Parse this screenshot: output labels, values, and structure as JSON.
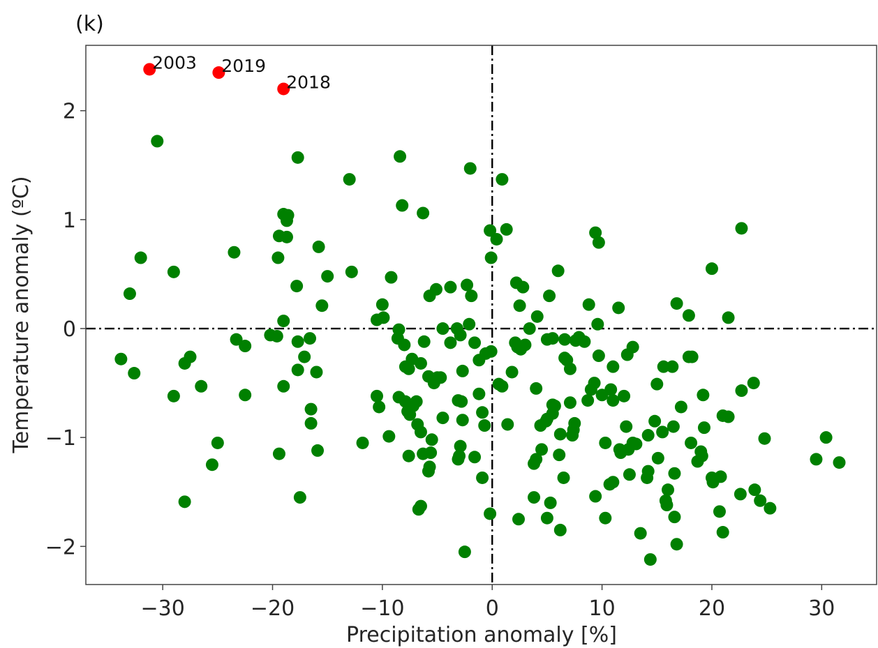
{
  "chart_data": {
    "type": "scatter",
    "panel_label": "(k)",
    "xlabel": "Precipitation anomaly [%]",
    "ylabel": "Temperature anomaly (ºC)",
    "xlim": [
      -37,
      35
    ],
    "ylim": [
      -2.35,
      2.6
    ],
    "xticks": [
      -30,
      -20,
      -10,
      0,
      10,
      20,
      30
    ],
    "xtick_labels": [
      "−30",
      "−20",
      "−10",
      "0",
      "10",
      "20",
      "30"
    ],
    "yticks": [
      -2,
      -1,
      0,
      1,
      2
    ],
    "ytick_labels": [
      "−2",
      "−1",
      "0",
      "1",
      "2"
    ],
    "reference_lines": {
      "x": 0,
      "y": 0,
      "style": "dash-dot"
    },
    "grid": false,
    "colors": {
      "points": "#008000",
      "highlight": "#ff0000",
      "reference_line": "#000000"
    },
    "highlighted": [
      {
        "label": "2003",
        "x": -31.2,
        "y": 2.38
      },
      {
        "label": "2019",
        "x": -24.9,
        "y": 2.35
      },
      {
        "label": "2018",
        "x": -19.0,
        "y": 2.2
      }
    ],
    "points": [
      [
        -30.5,
        1.72
      ],
      [
        -32.0,
        0.65
      ],
      [
        -33.0,
        0.32
      ],
      [
        -33.8,
        -0.28
      ],
      [
        -32.6,
        -0.41
      ],
      [
        -29.0,
        0.52
      ],
      [
        -29.0,
        -0.62
      ],
      [
        -28.0,
        -0.32
      ],
      [
        -27.5,
        -0.26
      ],
      [
        -26.5,
        -0.53
      ],
      [
        -25.5,
        -1.25
      ],
      [
        -25.0,
        -1.05
      ],
      [
        -28.0,
        -1.59
      ],
      [
        -23.5,
        0.7
      ],
      [
        -23.3,
        -0.1
      ],
      [
        -22.5,
        -0.16
      ],
      [
        -22.5,
        -0.61
      ],
      [
        -20.2,
        -0.06
      ],
      [
        -19.6,
        -0.07
      ],
      [
        -17.7,
        1.57
      ],
      [
        -13.0,
        1.37
      ],
      [
        -19.4,
        0.85
      ],
      [
        -19.0,
        1.05
      ],
      [
        -18.6,
        1.04
      ],
      [
        -18.7,
        0.99
      ],
      [
        -18.7,
        0.84
      ],
      [
        -19.5,
        0.65
      ],
      [
        -19.0,
        0.07
      ],
      [
        -17.8,
        0.39
      ],
      [
        -15.8,
        0.75
      ],
      [
        -15.0,
        0.48
      ],
      [
        -15.5,
        0.21
      ],
      [
        -12.8,
        0.52
      ],
      [
        -17.7,
        -0.12
      ],
      [
        -17.1,
        -0.26
      ],
      [
        -16.6,
        -0.09
      ],
      [
        -17.7,
        -0.38
      ],
      [
        -16.0,
        -0.4
      ],
      [
        -19.0,
        -0.53
      ],
      [
        -16.5,
        -0.74
      ],
      [
        -16.5,
        -0.87
      ],
      [
        -15.9,
        -1.12
      ],
      [
        -19.4,
        -1.15
      ],
      [
        -17.5,
        -1.55
      ],
      [
        -11.8,
        -1.05
      ],
      [
        -8.4,
        1.58
      ],
      [
        -8.2,
        1.13
      ],
      [
        -6.3,
        1.06
      ],
      [
        -2.0,
        1.47
      ],
      [
        0.9,
        1.37
      ],
      [
        -9.2,
        0.47
      ],
      [
        -10.0,
        0.22
      ],
      [
        -10.5,
        0.08
      ],
      [
        -9.9,
        0.1
      ],
      [
        -8.5,
        -0.01
      ],
      [
        -8.0,
        -0.15
      ],
      [
        -8.6,
        -0.09
      ],
      [
        -7.9,
        -0.35
      ],
      [
        -7.6,
        -0.37
      ],
      [
        -7.3,
        -0.28
      ],
      [
        -6.5,
        -0.32
      ],
      [
        -6.2,
        -0.12
      ],
      [
        -5.7,
        0.3
      ],
      [
        -5.1,
        0.36
      ],
      [
        -3.8,
        0.38
      ],
      [
        -4.5,
        0.0
      ],
      [
        -3.2,
        0.0
      ],
      [
        -2.1,
        0.04
      ],
      [
        -2.3,
        0.4
      ],
      [
        -1.9,
        0.3
      ],
      [
        -3.8,
        -0.13
      ],
      [
        -2.9,
        -0.06
      ],
      [
        -1.6,
        -0.13
      ],
      [
        -5.0,
        -0.45
      ],
      [
        -5.8,
        -0.44
      ],
      [
        -4.7,
        -0.45
      ],
      [
        -5.3,
        -0.5
      ],
      [
        -2.7,
        -0.39
      ],
      [
        -1.2,
        -0.29
      ],
      [
        -0.6,
        -0.23
      ],
      [
        -0.1,
        -0.21
      ],
      [
        -10.5,
        -0.62
      ],
      [
        -10.3,
        -0.72
      ],
      [
        -8.5,
        -0.63
      ],
      [
        -7.9,
        -0.67
      ],
      [
        -7.2,
        -0.71
      ],
      [
        -6.9,
        -0.67
      ],
      [
        -7.5,
        -0.79
      ],
      [
        -7.7,
        -0.76
      ],
      [
        -6.8,
        -0.88
      ],
      [
        -6.5,
        -0.95
      ],
      [
        -5.5,
        -1.02
      ],
      [
        -4.5,
        -0.82
      ],
      [
        -3.1,
        -0.66
      ],
      [
        -2.8,
        -0.67
      ],
      [
        -1.2,
        -0.6
      ],
      [
        -2.7,
        -0.84
      ],
      [
        -0.9,
        -0.77
      ],
      [
        -0.7,
        -0.89
      ],
      [
        -9.4,
        -0.99
      ],
      [
        -7.6,
        -1.17
      ],
      [
        -6.3,
        -1.15
      ],
      [
        -5.6,
        -1.14
      ],
      [
        -5.7,
        -1.27
      ],
      [
        -5.8,
        -1.31
      ],
      [
        -2.9,
        -1.08
      ],
      [
        -3.1,
        -1.2
      ],
      [
        -3.0,
        -1.17
      ],
      [
        -1.6,
        -1.18
      ],
      [
        -0.9,
        -1.37
      ],
      [
        -6.7,
        -1.66
      ],
      [
        -6.5,
        -1.63
      ],
      [
        -0.2,
        -1.7
      ],
      [
        -2.5,
        -2.05
      ],
      [
        -0.2,
        0.9
      ],
      [
        0.4,
        0.82
      ],
      [
        1.3,
        0.91
      ],
      [
        -0.1,
        0.65
      ],
      [
        2.2,
        0.42
      ],
      [
        2.8,
        0.38
      ],
      [
        2.5,
        0.21
      ],
      [
        3.4,
        0.0
      ],
      [
        4.1,
        0.11
      ],
      [
        2.3,
        -0.17
      ],
      [
        2.1,
        -0.13
      ],
      [
        2.6,
        -0.19
      ],
      [
        3.0,
        -0.15
      ],
      [
        1.8,
        -0.4
      ],
      [
        0.6,
        -0.51
      ],
      [
        0.9,
        -0.53
      ],
      [
        1.4,
        -0.88
      ],
      [
        5.2,
        0.3
      ],
      [
        6.0,
        0.53
      ],
      [
        5.0,
        -0.1
      ],
      [
        5.5,
        -0.09
      ],
      [
        6.6,
        -0.1
      ],
      [
        6.6,
        -0.27
      ],
      [
        6.8,
        -0.29
      ],
      [
        7.1,
        -0.37
      ],
      [
        7.9,
        -0.08
      ],
      [
        7.6,
        -0.11
      ],
      [
        8.4,
        -0.12
      ],
      [
        9.4,
        0.88
      ],
      [
        9.7,
        0.79
      ],
      [
        8.8,
        0.22
      ],
      [
        9.6,
        0.04
      ],
      [
        11.5,
        0.19
      ],
      [
        9.7,
        -0.25
      ],
      [
        4.0,
        -0.55
      ],
      [
        5.5,
        -0.7
      ],
      [
        5.7,
        -0.71
      ],
      [
        4.4,
        -0.89
      ],
      [
        4.9,
        -0.85
      ],
      [
        5.0,
        -0.83
      ],
      [
        5.5,
        -0.78
      ],
      [
        7.1,
        -0.68
      ],
      [
        7.4,
        -0.93
      ],
      [
        7.5,
        -0.87
      ],
      [
        7.3,
        -0.98
      ],
      [
        6.2,
        -0.97
      ],
      [
        8.7,
        -0.66
      ],
      [
        9.0,
        -0.56
      ],
      [
        9.3,
        -0.5
      ],
      [
        10.0,
        -0.61
      ],
      [
        10.8,
        -0.56
      ],
      [
        11.0,
        -0.66
      ],
      [
        12.0,
        -0.62
      ],
      [
        11.0,
        -0.35
      ],
      [
        12.3,
        -0.24
      ],
      [
        12.8,
        -0.17
      ],
      [
        4.5,
        -1.11
      ],
      [
        3.8,
        -1.24
      ],
      [
        4.0,
        -1.2
      ],
      [
        6.1,
        -1.16
      ],
      [
        6.5,
        -1.37
      ],
      [
        3.8,
        -1.55
      ],
      [
        5.3,
        -1.6
      ],
      [
        5.0,
        -1.74
      ],
      [
        2.4,
        -1.75
      ],
      [
        6.2,
        -1.85
      ],
      [
        10.3,
        -1.05
      ],
      [
        11.6,
        -1.11
      ],
      [
        11.7,
        -1.14
      ],
      [
        12.2,
        -0.9
      ],
      [
        12.4,
        -1.11
      ],
      [
        12.8,
        -1.05
      ],
      [
        13.1,
        -1.06
      ],
      [
        14.2,
        -0.98
      ],
      [
        14.8,
        -0.85
      ],
      [
        15.5,
        -0.95
      ],
      [
        15.1,
        -1.19
      ],
      [
        10.7,
        -1.43
      ],
      [
        11.0,
        -1.41
      ],
      [
        12.5,
        -1.34
      ],
      [
        14.2,
        -1.31
      ],
      [
        14.1,
        -1.37
      ],
      [
        9.4,
        -1.54
      ],
      [
        10.3,
        -1.74
      ],
      [
        13.5,
        -1.88
      ],
      [
        14.4,
        -2.12
      ],
      [
        15.0,
        -0.51
      ],
      [
        15.6,
        -0.35
      ],
      [
        16.4,
        -0.35
      ],
      [
        16.5,
        -0.9
      ],
      [
        17.2,
        -0.72
      ],
      [
        17.9,
        -0.26
      ],
      [
        18.2,
        -0.26
      ],
      [
        18.1,
        -1.05
      ],
      [
        18.7,
        -1.22
      ],
      [
        19.1,
        -1.17
      ],
      [
        19.0,
        -1.13
      ],
      [
        19.3,
        -0.91
      ],
      [
        19.2,
        -0.61
      ],
      [
        16.8,
        0.23
      ],
      [
        17.9,
        0.12
      ],
      [
        20.0,
        0.55
      ],
      [
        21.5,
        0.1
      ],
      [
        22.7,
        0.92
      ],
      [
        16.0,
        -1.48
      ],
      [
        15.8,
        -1.58
      ],
      [
        15.9,
        -1.62
      ],
      [
        16.6,
        -1.33
      ],
      [
        16.6,
        -1.73
      ],
      [
        16.8,
        -1.98
      ],
      [
        20.0,
        -1.37
      ],
      [
        20.1,
        -1.41
      ],
      [
        20.8,
        -1.36
      ],
      [
        21.0,
        -0.8
      ],
      [
        21.5,
        -0.81
      ],
      [
        22.7,
        -0.57
      ],
      [
        23.8,
        -0.5
      ],
      [
        22.6,
        -1.52
      ],
      [
        23.9,
        -1.48
      ],
      [
        24.4,
        -1.58
      ],
      [
        24.8,
        -1.01
      ],
      [
        25.3,
        -1.65
      ],
      [
        20.7,
        -1.68
      ],
      [
        21.0,
        -1.87
      ],
      [
        29.5,
        -1.2
      ],
      [
        30.4,
        -1.0
      ],
      [
        31.6,
        -1.23
      ]
    ]
  }
}
